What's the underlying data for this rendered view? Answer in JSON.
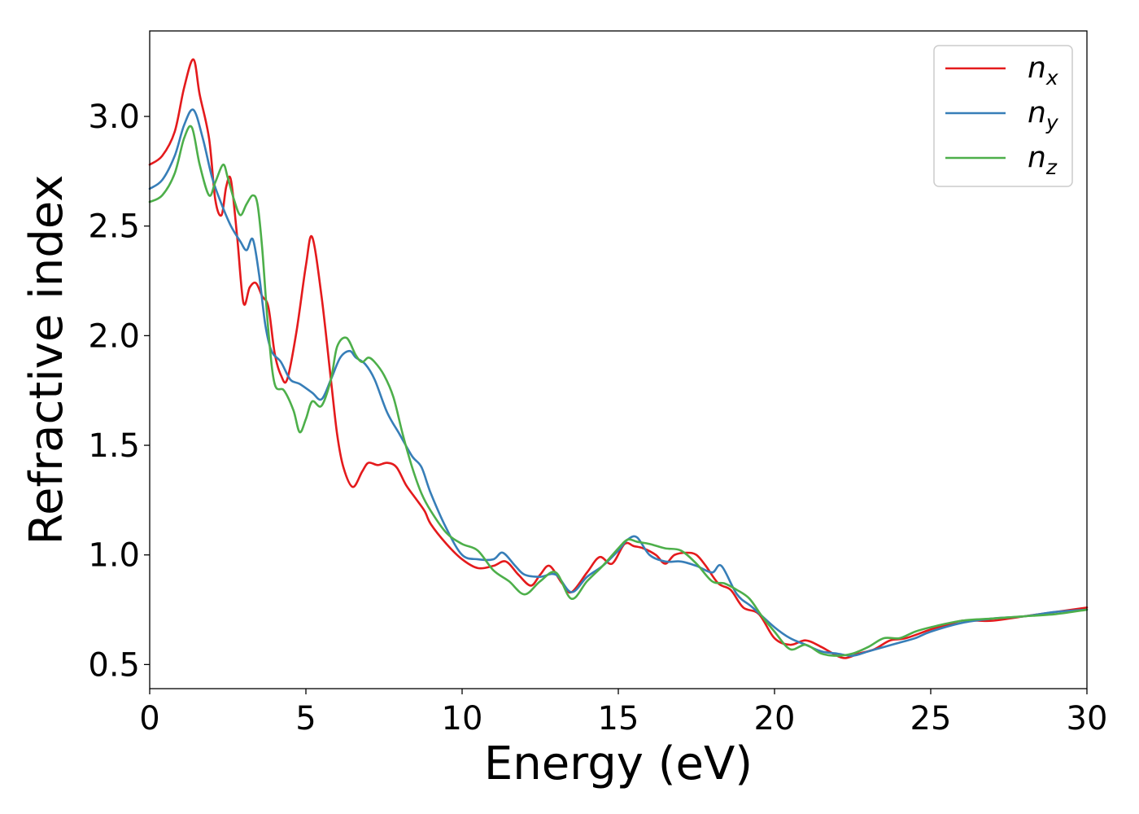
{
  "chart_data": {
    "type": "line",
    "title": "",
    "xlabel": "Energy (eV)",
    "ylabel": "Refractive index",
    "xlim": [
      0,
      30
    ],
    "ylim": [
      0.39,
      3.39
    ],
    "xticks": [
      0,
      5,
      10,
      15,
      20,
      25,
      30
    ],
    "xtick_labels": [
      "0",
      "5",
      "10",
      "15",
      "20",
      "25",
      "30"
    ],
    "yticks": [
      0.5,
      1.0,
      1.5,
      2.0,
      2.5,
      3.0
    ],
    "ytick_labels": [
      "0.5",
      "1.0",
      "1.5",
      "2.0",
      "2.5",
      "3.0"
    ],
    "grid": false,
    "legend_position": "top-right",
    "series": [
      {
        "name": "n",
        "subscript": "x",
        "color": "#e41a1c",
        "x": [
          0,
          0.4,
          0.8,
          1.1,
          1.4,
          1.6,
          1.9,
          2.1,
          2.3,
          2.45,
          2.6,
          2.8,
          3.0,
          3.2,
          3.4,
          3.6,
          3.8,
          4.0,
          4.2,
          4.4,
          4.7,
          5.0,
          5.2,
          5.5,
          5.8,
          6.0,
          6.2,
          6.5,
          6.8,
          7.0,
          7.3,
          7.6,
          7.9,
          8.2,
          8.5,
          8.8,
          9.0,
          9.5,
          10.0,
          10.5,
          11.0,
          11.4,
          11.8,
          12.2,
          12.5,
          12.8,
          13.2,
          13.5,
          14.0,
          14.4,
          14.8,
          15.2,
          15.5,
          15.8,
          16.2,
          16.5,
          16.8,
          17.2,
          17.5,
          17.8,
          18.2,
          18.6,
          19.0,
          19.5,
          20.0,
          20.5,
          21.0,
          21.5,
          22.0,
          22.3,
          22.7,
          23.2,
          23.7,
          24.2,
          25.0,
          25.5,
          26.0,
          26.5,
          27.0,
          28.0,
          29.0,
          30.0
        ],
        "y": [
          2.78,
          2.82,
          2.93,
          3.13,
          3.26,
          3.1,
          2.9,
          2.62,
          2.55,
          2.68,
          2.71,
          2.45,
          2.15,
          2.22,
          2.24,
          2.18,
          2.13,
          1.92,
          1.82,
          1.8,
          2.02,
          2.32,
          2.45,
          2.18,
          1.8,
          1.55,
          1.4,
          1.31,
          1.38,
          1.42,
          1.41,
          1.42,
          1.4,
          1.32,
          1.26,
          1.2,
          1.14,
          1.05,
          0.98,
          0.94,
          0.95,
          0.97,
          0.91,
          0.86,
          0.91,
          0.95,
          0.87,
          0.83,
          0.92,
          0.99,
          0.96,
          1.05,
          1.04,
          1.03,
          1.0,
          0.96,
          1.0,
          1.01,
          1.0,
          0.95,
          0.87,
          0.84,
          0.76,
          0.73,
          0.62,
          0.59,
          0.61,
          0.58,
          0.54,
          0.53,
          0.55,
          0.57,
          0.61,
          0.62,
          0.66,
          0.68,
          0.7,
          0.7,
          0.7,
          0.72,
          0.74,
          0.76
        ]
      },
      {
        "name": "n",
        "subscript": "y",
        "color": "#377eb8",
        "x": [
          0,
          0.4,
          0.8,
          1.1,
          1.4,
          1.7,
          2.0,
          2.3,
          2.6,
          2.9,
          3.1,
          3.3,
          3.5,
          3.7,
          3.9,
          4.2,
          4.5,
          4.8,
          5.2,
          5.5,
          5.8,
          6.1,
          6.4,
          6.6,
          6.9,
          7.2,
          7.6,
          8.0,
          8.4,
          8.7,
          9.0,
          9.5,
          10.0,
          10.5,
          11.0,
          11.3,
          11.7,
          12.0,
          12.5,
          13.0,
          13.5,
          14.0,
          14.5,
          15.0,
          15.3,
          15.6,
          16.0,
          16.5,
          17.0,
          17.5,
          18.0,
          18.3,
          18.8,
          19.3,
          20.0,
          20.5,
          21.0,
          21.5,
          22.0,
          22.5,
          23.0,
          23.5,
          24.0,
          24.5,
          25.0,
          26.0,
          27.0,
          28.0,
          29.0,
          30.0
        ],
        "y": [
          2.67,
          2.71,
          2.82,
          2.96,
          3.03,
          2.9,
          2.72,
          2.6,
          2.5,
          2.43,
          2.39,
          2.44,
          2.28,
          2.05,
          1.93,
          1.88,
          1.8,
          1.78,
          1.74,
          1.71,
          1.8,
          1.9,
          1.93,
          1.9,
          1.87,
          1.8,
          1.65,
          1.55,
          1.45,
          1.4,
          1.28,
          1.12,
          1.0,
          0.98,
          0.98,
          1.01,
          0.95,
          0.91,
          0.9,
          0.91,
          0.83,
          0.9,
          0.95,
          1.02,
          1.07,
          1.08,
          1.0,
          0.97,
          0.97,
          0.95,
          0.92,
          0.95,
          0.82,
          0.76,
          0.67,
          0.62,
          0.59,
          0.56,
          0.55,
          0.54,
          0.56,
          0.58,
          0.6,
          0.62,
          0.65,
          0.69,
          0.71,
          0.72,
          0.74,
          0.75
        ]
      },
      {
        "name": "n",
        "subscript": "z",
        "color": "#4daf4a",
        "x": [
          0,
          0.4,
          0.8,
          1.1,
          1.35,
          1.6,
          1.9,
          2.1,
          2.35,
          2.5,
          2.7,
          2.9,
          3.1,
          3.3,
          3.45,
          3.6,
          3.8,
          4.0,
          4.3,
          4.6,
          4.8,
          5.0,
          5.2,
          5.5,
          5.8,
          6.0,
          6.3,
          6.6,
          6.8,
          7.0,
          7.2,
          7.5,
          7.8,
          8.1,
          8.4,
          8.7,
          9.0,
          9.5,
          10.0,
          10.5,
          11.0,
          11.5,
          12.0,
          12.5,
          13.0,
          13.5,
          14.0,
          14.5,
          15.0,
          15.3,
          15.6,
          16.0,
          16.5,
          17.0,
          17.5,
          18.0,
          18.4,
          18.8,
          19.2,
          19.6,
          20.0,
          20.5,
          21.0,
          21.5,
          22.0,
          22.5,
          23.0,
          23.5,
          24.0,
          24.5,
          25.0,
          26.0,
          27.0,
          28.0,
          29.0,
          30.0
        ],
        "y": [
          2.61,
          2.64,
          2.74,
          2.9,
          2.95,
          2.78,
          2.64,
          2.7,
          2.78,
          2.72,
          2.62,
          2.55,
          2.6,
          2.64,
          2.6,
          2.4,
          2.02,
          1.78,
          1.75,
          1.66,
          1.56,
          1.62,
          1.7,
          1.68,
          1.8,
          1.95,
          1.99,
          1.91,
          1.88,
          1.9,
          1.88,
          1.82,
          1.72,
          1.55,
          1.4,
          1.28,
          1.2,
          1.1,
          1.05,
          1.02,
          0.93,
          0.88,
          0.82,
          0.88,
          0.92,
          0.8,
          0.88,
          0.95,
          1.03,
          1.07,
          1.06,
          1.05,
          1.03,
          1.02,
          0.96,
          0.88,
          0.87,
          0.84,
          0.8,
          0.72,
          0.65,
          0.57,
          0.59,
          0.55,
          0.54,
          0.55,
          0.58,
          0.62,
          0.62,
          0.65,
          0.67,
          0.7,
          0.71,
          0.72,
          0.73,
          0.75
        ]
      }
    ]
  }
}
